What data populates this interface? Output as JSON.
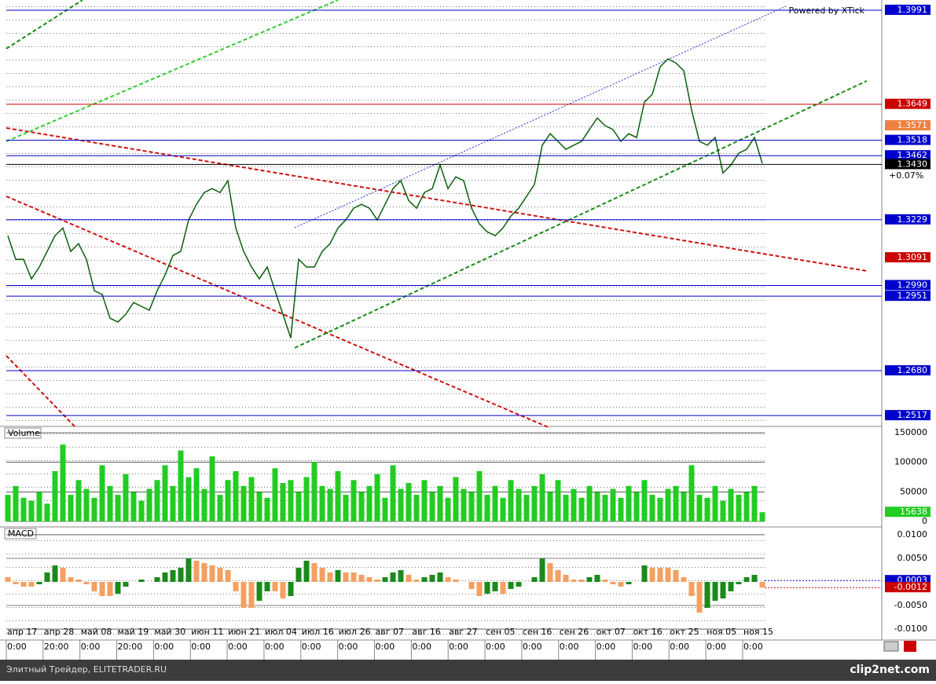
{
  "chart_data": [
    {
      "type": "line",
      "watermark": "Powered by XTick",
      "ylim": [
        1.2486,
        1.4028
      ],
      "change_label": "+0.07%",
      "series": [
        {
          "color": "#0a5f0a",
          "values": [
            1.3171,
            1.3085,
            1.3085,
            1.3014,
            1.3057,
            1.3114,
            1.3171,
            1.3199,
            1.3114,
            1.3142,
            1.3085,
            1.2971,
            1.2957,
            1.2871,
            1.2857,
            1.2885,
            1.2928,
            1.2914,
            1.29,
            1.2971,
            1.3028,
            1.3099,
            1.3114,
            1.3228,
            1.3285,
            1.3328,
            1.3342,
            1.3328,
            1.3371,
            1.3199,
            1.3114,
            1.3057,
            1.3014,
            1.3057,
            1.2971,
            1.2885,
            1.2799,
            1.3085,
            1.3057,
            1.3057,
            1.3114,
            1.3142,
            1.3199,
            1.3228,
            1.3271,
            1.3285,
            1.3271,
            1.3228,
            1.3285,
            1.3342,
            1.3371,
            1.3299,
            1.3271,
            1.3328,
            1.3342,
            1.3428,
            1.3342,
            1.3385,
            1.3371,
            1.3271,
            1.3214,
            1.3185,
            1.3171,
            1.3199,
            1.3242,
            1.3271,
            1.3314,
            1.3357,
            1.35,
            1.3542,
            1.3514,
            1.3485,
            1.35,
            1.3514,
            1.3557,
            1.3599,
            1.3571,
            1.3557,
            1.3514,
            1.3542,
            1.3528,
            1.3657,
            1.3685,
            1.3785,
            1.3814,
            1.3799,
            1.3771,
            1.3628,
            1.3514,
            1.35,
            1.3528,
            1.3399,
            1.3428,
            1.3471,
            1.3485,
            1.3528,
            1.3434
          ]
        }
      ],
      "levels": [
        {
          "value": 1.3991,
          "label": "1.3991",
          "color": "#0000cc",
          "show_line": true
        },
        {
          "value": 1.3649,
          "label": "1.3649",
          "color": "#cc0000",
          "show_line": true
        },
        {
          "value": 1.3571,
          "label": "1.3571",
          "color": "#f08040",
          "show_line": false
        },
        {
          "value": 1.3518,
          "label": "1.3518",
          "color": "#0000cc",
          "show_line": true
        },
        {
          "value": 1.3462,
          "label": "1.3462",
          "color": "#0000cc",
          "show_line": true
        },
        {
          "value": 1.343,
          "label": "1.3430",
          "color": "#000000",
          "show_line": true
        },
        {
          "value": 1.3229,
          "label": "1.3229",
          "color": "#0000cc",
          "show_line": true
        },
        {
          "value": 1.3091,
          "label": "1.3091",
          "color": "#cc0000",
          "show_line": false
        },
        {
          "value": 1.299,
          "label": "1.2990",
          "color": "#0000cc",
          "show_line": true
        },
        {
          "value": 1.2951,
          "label": "1.2951",
          "color": "#0000cc",
          "show_line": true
        },
        {
          "value": 1.268,
          "label": "1.2680",
          "color": "#0000cc",
          "show_line": true
        },
        {
          "value": 1.2517,
          "label": "1.2517",
          "color": "#0000cc",
          "show_line": true
        }
      ]
    },
    {
      "type": "bar",
      "title": "Volume",
      "color": "#22cc22",
      "ylim": [
        -5300,
        158000
      ],
      "yticks": [
        0,
        50000,
        100000,
        150000
      ],
      "values": [
        45000,
        60000,
        40000,
        35000,
        50000,
        30000,
        85000,
        130000,
        45000,
        70000,
        55000,
        40000,
        95000,
        60000,
        45000,
        80000,
        50000,
        35000,
        55000,
        70000,
        95000,
        60000,
        120000,
        75000,
        90000,
        55000,
        110000,
        45000,
        70000,
        85000,
        60000,
        75000,
        50000,
        40000,
        90000,
        65000,
        70000,
        50000,
        75000,
        100000,
        60000,
        55000,
        85000,
        45000,
        70000,
        50000,
        60000,
        80000,
        40000,
        95000,
        55000,
        65000,
        45000,
        70000,
        50000,
        60000,
        40000,
        75000,
        55000,
        50000,
        85000,
        45000,
        60000,
        40000,
        70000,
        55000,
        45000,
        60000,
        80000,
        50000,
        70000,
        45000,
        55000,
        40000,
        60000,
        50000,
        45000,
        55000,
        40000,
        60000,
        50000,
        70000,
        45000,
        40000,
        55000,
        60000,
        50000,
        95000,
        45000,
        40000,
        60000,
        35000,
        55000,
        45000,
        50000,
        60000,
        15638
      ]
    },
    {
      "type": "bar",
      "title": "MACD",
      "color": "#f4a060",
      "color_up": "#1a8a1a",
      "ylim": [
        -0.01233,
        0.01133
      ],
      "yticks": [
        {
          "value": 0.01,
          "label": "0.0100"
        },
        {
          "value": 0.005,
          "label": "0.0050"
        },
        {
          "value": -0.005,
          "label": "-0.0050"
        },
        {
          "value": -0.01,
          "label": "-0.0100"
        }
      ],
      "markers": [
        {
          "value": 0.0003,
          "label": "0.0003",
          "color": "#0000cc"
        },
        {
          "value": -0.0012,
          "label": "-0.0012",
          "color": "#cc0000"
        }
      ],
      "values": [
        0.001,
        -0.0005,
        -0.001,
        -0.001,
        -0.0005,
        0.002,
        0.0035,
        0.003,
        0.001,
        0.0005,
        -0.0005,
        -0.002,
        -0.003,
        -0.003,
        -0.0025,
        -0.001,
        0,
        0.0005,
        0,
        0.001,
        0.002,
        0.0025,
        0.003,
        0.005,
        0.0045,
        0.004,
        0.0035,
        0.003,
        0.0025,
        -0.002,
        -0.0055,
        -0.0055,
        -0.004,
        -0.002,
        -0.002,
        -0.0035,
        -0.003,
        0.003,
        0.0045,
        0.004,
        0.003,
        0.002,
        0.0025,
        0.002,
        0.002,
        0.0015,
        0.001,
        0.0005,
        0.001,
        0.002,
        0.0025,
        0.0015,
        0.0005,
        0.001,
        0.0015,
        0.002,
        0.001,
        0.0005,
        0,
        -0.0015,
        -0.003,
        -0.0025,
        -0.002,
        -0.0025,
        -0.0015,
        -0.001,
        0,
        0.001,
        0.005,
        0.004,
        0.0025,
        0.0015,
        0.0005,
        0.0005,
        0.001,
        0.0015,
        0.0005,
        -0.0005,
        -0.001,
        -0.0005,
        0,
        0.0035,
        0.003,
        0.003,
        0.003,
        0.0025,
        0.001,
        -0.003,
        -0.0065,
        -0.0055,
        -0.004,
        -0.0035,
        -0.002,
        -0.0005,
        0.001,
        0.0015,
        -0.0012
      ]
    }
  ],
  "x_axis": {
    "dates": [
      "апр 17",
      "апр 28",
      "май 08",
      "май 19",
      "май 30",
      "июн 11",
      "июн 21",
      "июл 04",
      "июл 16",
      "июл 26",
      "авг 07",
      "авг 16",
      "авг 27",
      "сен 05",
      "сен 16",
      "сен 26",
      "окт 07",
      "окт 16",
      "окт 25",
      "ноя 05",
      "ноя 15"
    ],
    "times": [
      "0:00",
      "20:00",
      "0:00",
      "20:00",
      "0:00",
      "0:00",
      "0:00",
      "0:00",
      "0:00",
      "0:00",
      "0:00",
      "0:00",
      "0:00",
      "0:00",
      "0:00",
      "0:00",
      "0:00",
      "0:00",
      "0:00",
      "0:00",
      "0:00"
    ]
  },
  "footer": {
    "left": "Элитный Трейдер, ELITETRADER.RU",
    "right": "clip2net.com"
  }
}
